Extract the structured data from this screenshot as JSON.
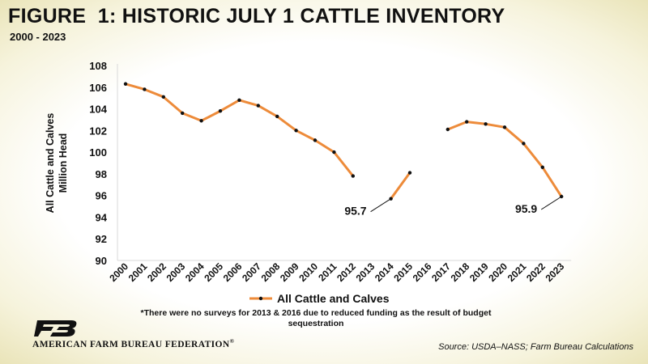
{
  "header": {
    "title": "FIGURE  1: HISTORIC JULY 1 CATTLE INVENTORY",
    "subtitle": "2000 - 2023"
  },
  "footnote": "*There were no surveys for 2013 & 2016 due to reduced funding as the result of budget sequestration",
  "source": "Source: USDA–NASS; Farm Bureau Calculations",
  "org": {
    "name": "AMERICAN FARM BUREAU FEDERATION",
    "registered_mark": "®"
  },
  "colors": {
    "line": "#ed8b3a",
    "marker": "#111111",
    "axis": "#d9d9d9",
    "text": "#111111"
  },
  "chart_data": {
    "type": "line",
    "ylabel": [
      "All Cattle and Calves",
      "Million Head"
    ],
    "xlabel": "",
    "ylim": [
      90,
      108
    ],
    "yticks": [
      90,
      92,
      94,
      96,
      98,
      100,
      102,
      104,
      106,
      108
    ],
    "grid": false,
    "legend_position": "bottom-center",
    "categories": [
      "2000",
      "2001",
      "2002",
      "2003",
      "2004",
      "2005",
      "2006",
      "2007",
      "2008",
      "2009",
      "2010",
      "2011",
      "2012",
      "2013",
      "2014",
      "2015",
      "2016",
      "2017",
      "2018",
      "2019",
      "2020",
      "2021",
      "2022",
      "2023"
    ],
    "series": [
      {
        "name": "All Cattle and Calves",
        "values": [
          106.3,
          105.8,
          105.1,
          103.6,
          102.9,
          103.8,
          104.8,
          104.3,
          103.3,
          102.0,
          101.1,
          100.0,
          97.8,
          null,
          95.7,
          98.1,
          null,
          102.1,
          102.8,
          102.6,
          102.3,
          100.8,
          98.6,
          95.9
        ]
      }
    ],
    "annotations": [
      {
        "category": "2014",
        "text": "95.7"
      },
      {
        "category": "2023",
        "text": "95.9"
      }
    ]
  }
}
